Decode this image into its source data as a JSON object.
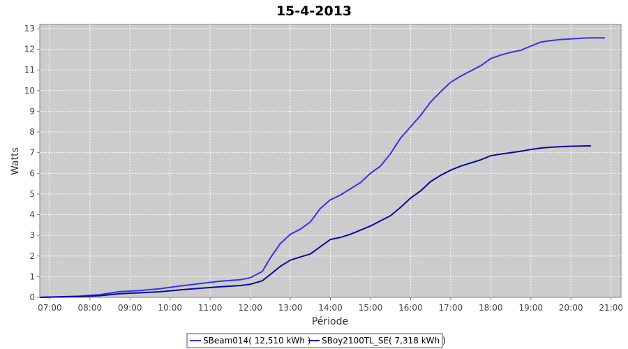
{
  "chart_data": {
    "type": "line",
    "title": "15-4-2013",
    "xlabel": "Période",
    "ylabel": "Watts",
    "xlim": [
      6.75,
      21.25
    ],
    "ylim": [
      0,
      13.2
    ],
    "x_ticks": [
      {
        "value": 7,
        "label": "07:00"
      },
      {
        "value": 8,
        "label": "08:00"
      },
      {
        "value": 9,
        "label": "09:00"
      },
      {
        "value": 10,
        "label": "10:00"
      },
      {
        "value": 11,
        "label": "11:00"
      },
      {
        "value": 12,
        "label": "12:00"
      },
      {
        "value": 13,
        "label": "13:00"
      },
      {
        "value": 14,
        "label": "14:00"
      },
      {
        "value": 15,
        "label": "15:00"
      },
      {
        "value": 16,
        "label": "16:00"
      },
      {
        "value": 17,
        "label": "17:00"
      },
      {
        "value": 18,
        "label": "18:00"
      },
      {
        "value": 19,
        "label": "19:00"
      },
      {
        "value": 20,
        "label": "20:00"
      },
      {
        "value": 21,
        "label": "21:00"
      }
    ],
    "y_ticks": [
      0,
      1,
      2,
      3,
      4,
      5,
      6,
      7,
      8,
      9,
      10,
      11,
      12,
      13
    ],
    "grid": true,
    "legend_position": "bottom-center",
    "series": [
      {
        "name": "SBeam014( 12,510 kWh )",
        "color": "#3333ee",
        "points": [
          [
            6.75,
            0.0
          ],
          [
            7.25,
            0.03
          ],
          [
            7.75,
            0.06
          ],
          [
            8.25,
            0.13
          ],
          [
            8.75,
            0.28
          ],
          [
            9.25,
            0.33
          ],
          [
            9.75,
            0.42
          ],
          [
            10.25,
            0.55
          ],
          [
            10.75,
            0.67
          ],
          [
            11.25,
            0.78
          ],
          [
            11.75,
            0.85
          ],
          [
            12.0,
            0.95
          ],
          [
            12.3,
            1.25
          ],
          [
            12.5,
            1.9
          ],
          [
            12.75,
            2.6
          ],
          [
            13.0,
            3.05
          ],
          [
            13.25,
            3.3
          ],
          [
            13.5,
            3.65
          ],
          [
            13.75,
            4.3
          ],
          [
            14.0,
            4.72
          ],
          [
            14.25,
            4.95
          ],
          [
            14.5,
            5.25
          ],
          [
            14.75,
            5.55
          ],
          [
            15.0,
            6.0
          ],
          [
            15.25,
            6.35
          ],
          [
            15.5,
            6.95
          ],
          [
            15.75,
            7.7
          ],
          [
            16.0,
            8.25
          ],
          [
            16.25,
            8.8
          ],
          [
            16.5,
            9.45
          ],
          [
            16.75,
            9.95
          ],
          [
            17.0,
            10.4
          ],
          [
            17.25,
            10.7
          ],
          [
            17.5,
            10.95
          ],
          [
            17.75,
            11.2
          ],
          [
            18.0,
            11.55
          ],
          [
            18.25,
            11.72
          ],
          [
            18.5,
            11.85
          ],
          [
            18.75,
            11.95
          ],
          [
            19.0,
            12.15
          ],
          [
            19.25,
            12.35
          ],
          [
            19.5,
            12.42
          ],
          [
            19.75,
            12.47
          ],
          [
            20.0,
            12.5
          ],
          [
            20.25,
            12.53
          ],
          [
            20.5,
            12.55
          ],
          [
            20.85,
            12.55
          ]
        ]
      },
      {
        "name": "SBoy2100TL_SE( 7,318 kWh )",
        "color": "#0a0aa0",
        "points": [
          [
            6.75,
            0.0
          ],
          [
            7.25,
            0.02
          ],
          [
            7.75,
            0.04
          ],
          [
            8.25,
            0.08
          ],
          [
            8.75,
            0.18
          ],
          [
            9.25,
            0.22
          ],
          [
            9.75,
            0.27
          ],
          [
            10.25,
            0.36
          ],
          [
            10.75,
            0.44
          ],
          [
            11.25,
            0.51
          ],
          [
            11.75,
            0.57
          ],
          [
            12.0,
            0.63
          ],
          [
            12.3,
            0.8
          ],
          [
            12.5,
            1.1
          ],
          [
            12.75,
            1.5
          ],
          [
            13.0,
            1.8
          ],
          [
            13.25,
            1.95
          ],
          [
            13.5,
            2.1
          ],
          [
            13.75,
            2.45
          ],
          [
            14.0,
            2.8
          ],
          [
            14.25,
            2.9
          ],
          [
            14.5,
            3.05
          ],
          [
            14.75,
            3.25
          ],
          [
            15.0,
            3.45
          ],
          [
            15.25,
            3.7
          ],
          [
            15.5,
            3.95
          ],
          [
            15.75,
            4.35
          ],
          [
            16.0,
            4.8
          ],
          [
            16.25,
            5.15
          ],
          [
            16.5,
            5.6
          ],
          [
            16.75,
            5.9
          ],
          [
            17.0,
            6.15
          ],
          [
            17.25,
            6.35
          ],
          [
            17.5,
            6.5
          ],
          [
            17.75,
            6.65
          ],
          [
            18.0,
            6.85
          ],
          [
            18.25,
            6.93
          ],
          [
            18.5,
            7.0
          ],
          [
            18.75,
            7.07
          ],
          [
            19.0,
            7.15
          ],
          [
            19.25,
            7.22
          ],
          [
            19.5,
            7.26
          ],
          [
            19.75,
            7.29
          ],
          [
            20.0,
            7.31
          ],
          [
            20.25,
            7.32
          ],
          [
            20.5,
            7.33
          ]
        ]
      }
    ]
  }
}
